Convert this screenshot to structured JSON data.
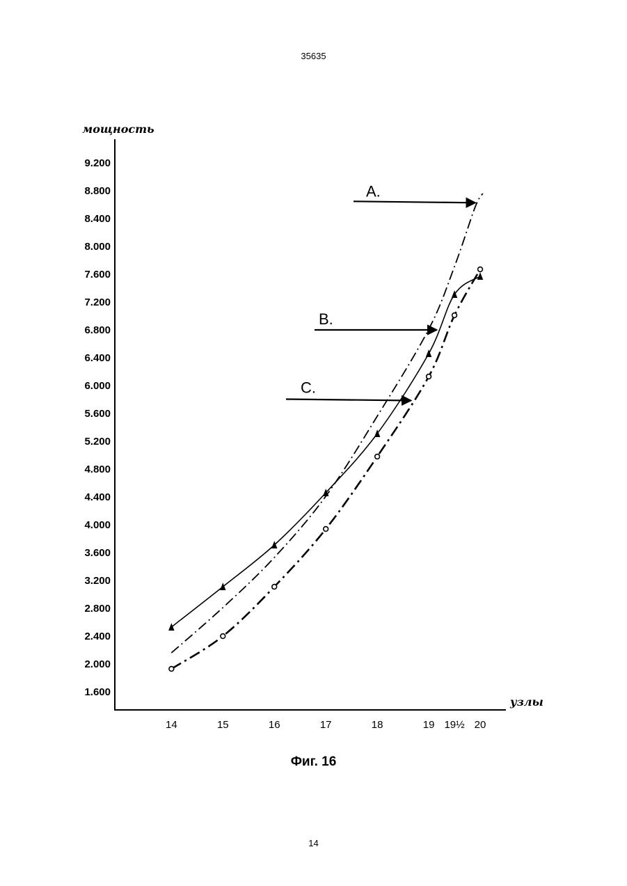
{
  "header": {
    "page_number": "35635"
  },
  "footer": {
    "page_number": "14"
  },
  "caption": "Фиг. 16",
  "chart_data": {
    "type": "line",
    "ylabel": "мощность",
    "xlabel": "узлы",
    "y_ticks": [
      "1.600",
      "2.000",
      "2.400",
      "2.800",
      "3.200",
      "3.600",
      "4.000",
      "4.400",
      "4.800",
      "5.200",
      "5.600",
      "6.000",
      "6.400",
      "6.800",
      "7.200",
      "7.600",
      "8.000",
      "8.400",
      "8.800",
      "9.200"
    ],
    "x_ticks": [
      {
        "value": 14,
        "label": "14"
      },
      {
        "value": 15,
        "label": "15"
      },
      {
        "value": 16,
        "label": "16"
      },
      {
        "value": 17,
        "label": "17"
      },
      {
        "value": 18,
        "label": "18"
      },
      {
        "value": 19,
        "label": "19"
      },
      {
        "value": 19.5,
        "label": "19½"
      },
      {
        "value": 20,
        "label": "20"
      }
    ],
    "xlim": [
      12.9,
      20.5
    ],
    "ylim": [
      1600,
      9200
    ],
    "grid": false,
    "series": [
      {
        "name": "A.",
        "style": "dash-dot",
        "marker": "none",
        "points": [
          [
            14,
            2150
          ],
          [
            15,
            2800
          ],
          [
            16,
            3520
          ],
          [
            17,
            4400
          ],
          [
            18,
            5550
          ],
          [
            19,
            6800
          ],
          [
            19.5,
            7700
          ],
          [
            19.9,
            8550
          ],
          [
            20.05,
            8750
          ]
        ]
      },
      {
        "name": "B.",
        "style": "solid",
        "marker": "triangle",
        "points": [
          [
            14,
            2520
          ],
          [
            15,
            3100
          ],
          [
            16,
            3700
          ],
          [
            17,
            4450
          ],
          [
            18,
            5300
          ],
          [
            19,
            6450
          ],
          [
            19.5,
            7300
          ],
          [
            20,
            7560
          ]
        ]
      },
      {
        "name": "C.",
        "style": "dash-dot-heavy",
        "marker": "circle",
        "points": [
          [
            14,
            1920
          ],
          [
            15,
            2390
          ],
          [
            16,
            3100
          ],
          [
            17,
            3930
          ],
          [
            18,
            4970
          ],
          [
            19,
            6120
          ],
          [
            19.5,
            7000
          ],
          [
            20,
            7660
          ]
        ]
      }
    ],
    "annotations": [
      {
        "label": "A.",
        "target_series": "A.",
        "target_x": 19.95
      },
      {
        "label": "B.",
        "target_series": "B.",
        "target_x": 19.2
      },
      {
        "label": "C.",
        "target_series": "C.",
        "target_x": 18.7
      }
    ]
  }
}
